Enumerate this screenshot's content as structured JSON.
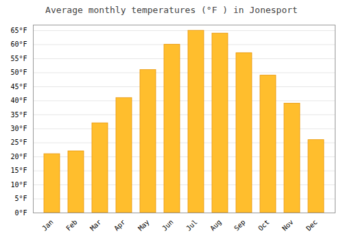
{
  "chart_data": {
    "type": "bar",
    "title": "Average monthly temperatures (°F ) in Jonesport",
    "categories": [
      "Jan",
      "Feb",
      "Mar",
      "Apr",
      "May",
      "Jun",
      "Jul",
      "Aug",
      "Sep",
      "Oct",
      "Nov",
      "Dec"
    ],
    "values": [
      21,
      22,
      32,
      41,
      51,
      60,
      65,
      64,
      57,
      49,
      39,
      26
    ],
    "color": "#FFBE2D",
    "ylim": [
      0,
      67
    ],
    "yticks": [
      {
        "value": 0,
        "label": "0°F"
      },
      {
        "value": 5,
        "label": "5°F"
      },
      {
        "value": 10,
        "label": "10°F"
      },
      {
        "value": 15,
        "label": "15°F"
      },
      {
        "value": 20,
        "label": "20°F"
      },
      {
        "value": 25,
        "label": "25°F"
      },
      {
        "value": 30,
        "label": "30°F"
      },
      {
        "value": 35,
        "label": "35°F"
      },
      {
        "value": 40,
        "label": "40°F"
      },
      {
        "value": 45,
        "label": "45°F"
      },
      {
        "value": 50,
        "label": "50°F"
      },
      {
        "value": 55,
        "label": "55°F"
      },
      {
        "value": 60,
        "label": "60°F"
      },
      {
        "value": 65,
        "label": "65°F"
      }
    ],
    "grid": true
  }
}
